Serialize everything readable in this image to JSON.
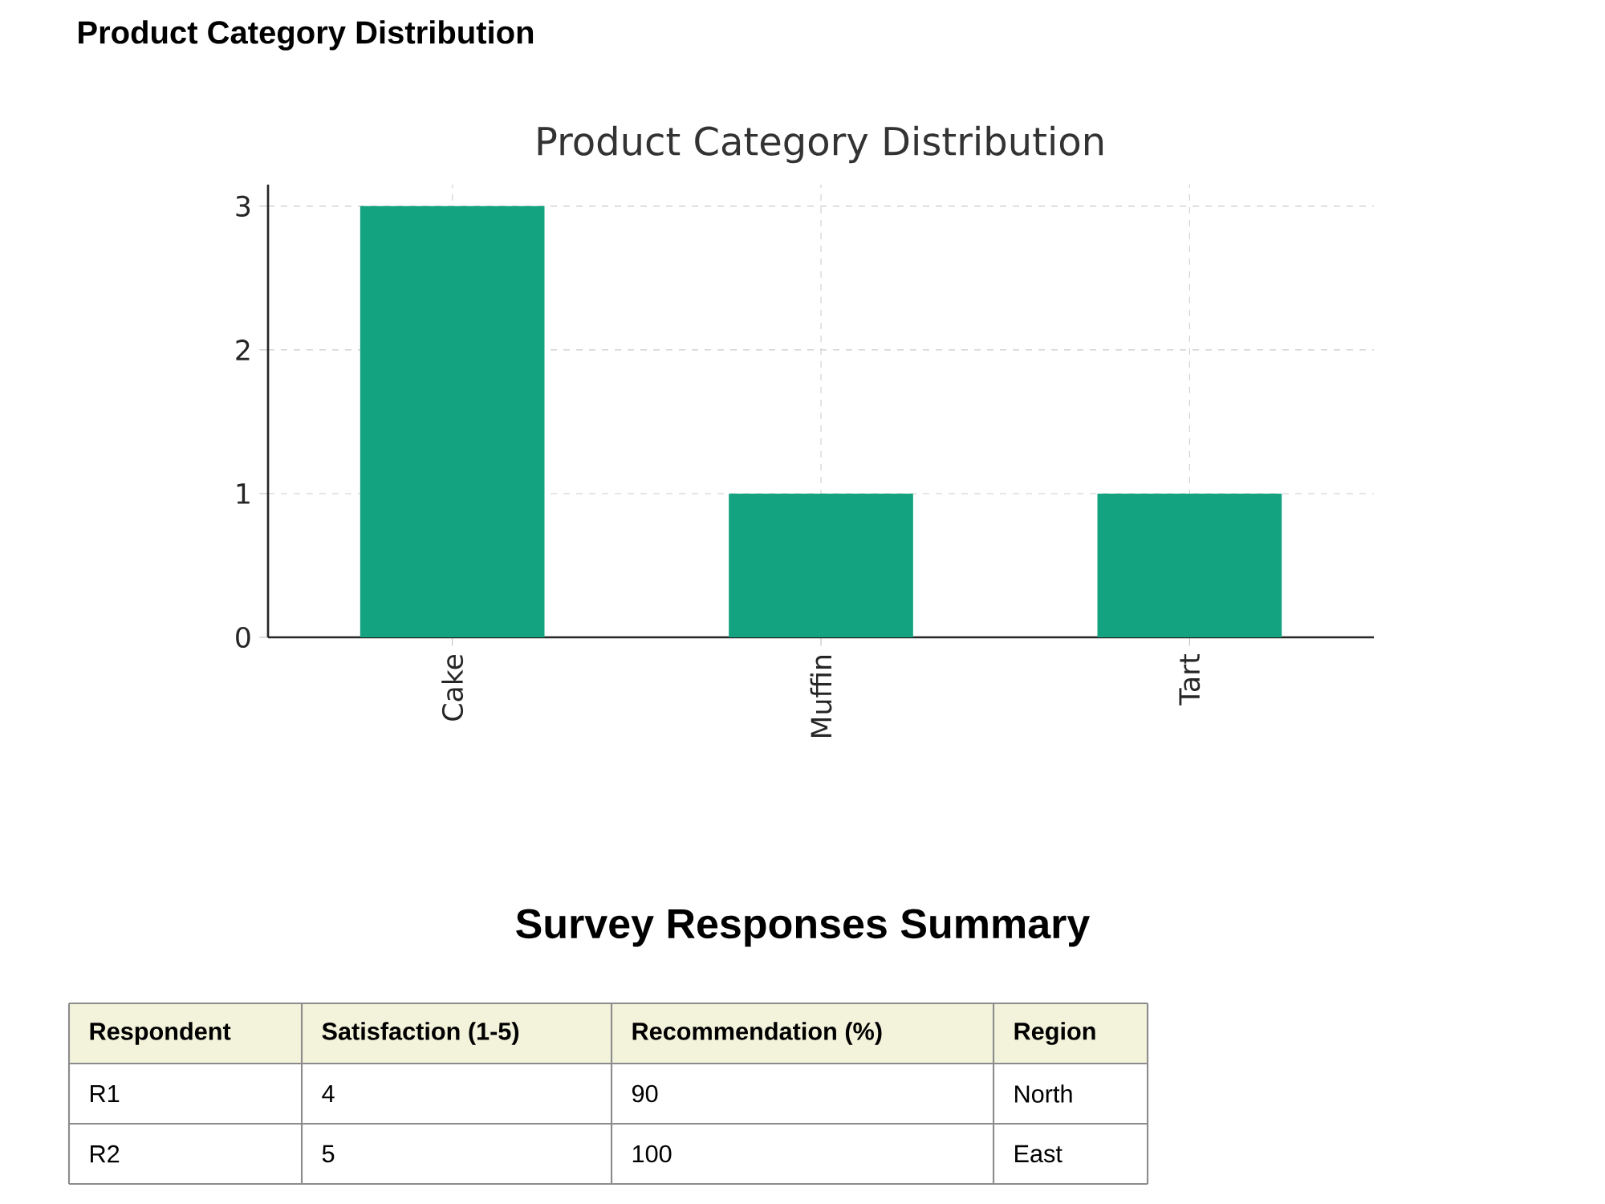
{
  "chart_data": [
    {
      "type": "bar",
      "title": "Product Category Distribution",
      "subtitle": "Product Category Distribution",
      "categories": [
        "Cake",
        "Muffin",
        "Tart"
      ],
      "values": [
        3,
        1,
        1
      ],
      "color": "#13a381",
      "ylim": [
        0,
        3.15
      ],
      "yticks": [
        0,
        1,
        2,
        3
      ],
      "grid": true
    },
    {
      "type": "other",
      "title": "Survey Responses Summary",
      "annotations": [
        "Respondent",
        "Satisfaction (1-5)",
        "Recommendation (%)",
        "Region",
        "R1",
        "4",
        "90",
        "North",
        "R2",
        "5",
        "100",
        "East"
      ]
    }
  ]
}
